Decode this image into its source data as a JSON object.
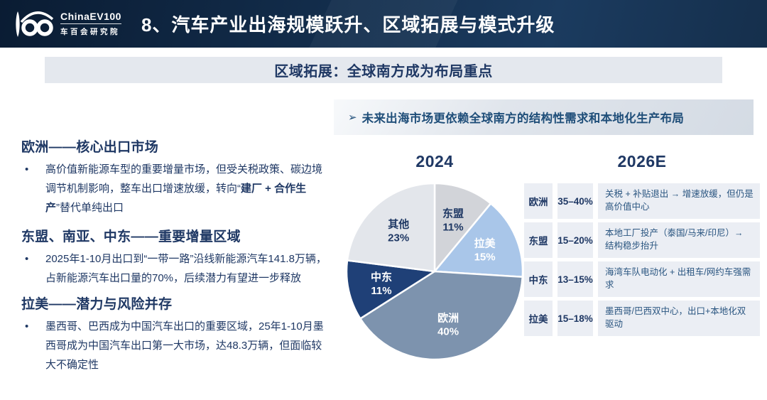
{
  "header": {
    "logo_brand": "ChinaEV100",
    "logo_sub": "车百会研究院",
    "title": "8、汽车产业出海规模跃升、区域拓展与模式升级"
  },
  "banner": {
    "text": "区域拓展：全球南方成为布局重点"
  },
  "callout": {
    "arrow": "➢",
    "text": "未来出海市场更依赖全球南方的结构性需求和本地化生产布局"
  },
  "left_sections": [
    {
      "heading": "欧洲——核心出口市场",
      "bullet_symbol": "•",
      "bullet_pre": "高价值新能源车型的重要增量市场，但受关税政策、碳边境调节机制影响，整车出口增速放缓，转向“",
      "bullet_bold": "建厂 + 合作生产",
      "bullet_post": "”替代单纯出口"
    },
    {
      "heading": "东盟、南亚、中东——重要增量区域",
      "bullet_symbol": "•",
      "bullet_pre": "2025年1-10月出口到“一带一路”沿线新能源汽车141.8万辆，占新能源汽车出口量的70%，后续潜力有望进一步释放",
      "bullet_bold": "",
      "bullet_post": ""
    },
    {
      "heading": "拉美——潜力与风险并存",
      "bullet_symbol": "•",
      "bullet_pre": "墨西哥、巴西成为中国汽车出口的重要区域，25年1-10月墨西哥成为中国汽车出口第一大市场，达48.3万辆，但面临较大不确定性",
      "bullet_bold": "",
      "bullet_post": ""
    }
  ],
  "chart_data": {
    "type": "pie",
    "title": "2024",
    "start_angle_deg": -90,
    "direction": "clockwise",
    "label_radius_frac": 0.62,
    "slices": [
      {
        "label": "东盟",
        "value": 11,
        "color": "#d2d4d9",
        "text_color": "#1f3864"
      },
      {
        "label": "拉美",
        "value": 15,
        "color": "#a9c6e9",
        "text_color": "#ffffff"
      },
      {
        "label": "欧洲",
        "value": 40,
        "color": "#7d93ae",
        "text_color": "#ffffff"
      },
      {
        "label": "中东",
        "value": 11,
        "color": "#1f4077",
        "text_color": "#ffffff"
      },
      {
        "label": "其他",
        "value": 23,
        "color": "#e3e6eb",
        "text_color": "#1f3864"
      }
    ]
  },
  "forecast_table": {
    "title": "2026E",
    "rows": [
      {
        "region": "欧洲",
        "range": "35–40%",
        "note": "关税 + 补贴退出 → 增速放缓，但仍是高价值中心"
      },
      {
        "region": "东盟",
        "range": "15–20%",
        "note": "本地工厂投产（泰国/马来/印尼）→ 结构稳步抬升"
      },
      {
        "region": "中东",
        "range": "13–15%",
        "note": "海湾车队电动化 + 出租车/网约车强需求"
      },
      {
        "region": "拉美",
        "range": "15–18%",
        "note": "墨西哥/巴西双中心，出口+本地化双驱动"
      }
    ]
  },
  "colors": {
    "header_bg": "#12304f",
    "title_text": "#ffffff",
    "accent_navy": "#1f3864",
    "banner_bg": "#e4e8ee",
    "callout_bg": "#d4dbe4",
    "callout_text": "#1f4e79",
    "table_row_bg": "#ebeef4",
    "table_note_text": "#2a5580"
  }
}
